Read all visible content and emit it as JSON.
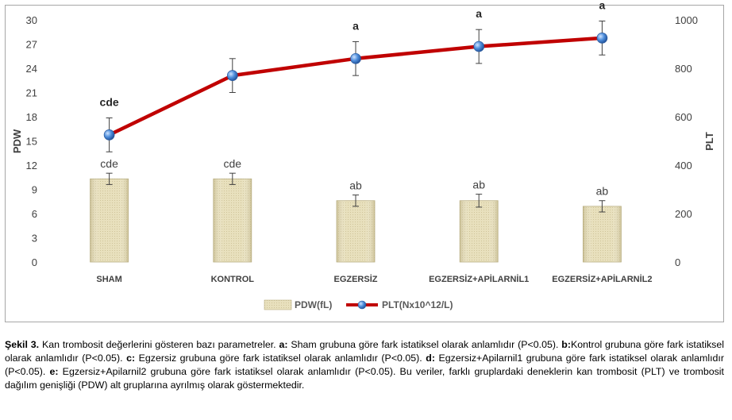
{
  "chart_data": {
    "type": "bar+line",
    "categories": [
      "SHAM",
      "KONTROL",
      "EGZERSİZ",
      "EGZERSİZ+APİLARNİL1",
      "EGZERSİZ+APİLARNİL2"
    ],
    "left_axis": {
      "label": "PDW",
      "min": 0,
      "max": 30,
      "ticks": [
        "0",
        "3",
        "6",
        "9",
        "12",
        "15",
        "18",
        "21",
        "24",
        "27",
        "30"
      ]
    },
    "right_axis": {
      "label": "PLT",
      "min": 0,
      "max": 1000,
      "ticks": [
        "0",
        "200",
        "400",
        "600",
        "800",
        "1000"
      ]
    },
    "series": [
      {
        "name": "PDW(fL)",
        "type": "bar",
        "axis": "left",
        "values": [
          10.3,
          10.3,
          7.6,
          7.6,
          6.9
        ],
        "errors": [
          0.7,
          0.7,
          0.7,
          0.8,
          0.7
        ],
        "labels": [
          "cde",
          "cde",
          "ab",
          "ab",
          "ab"
        ],
        "color": "#ddd4aa"
      },
      {
        "name": "PLT(Nx10^12/L)",
        "type": "line",
        "axis": "right",
        "values": [
          525,
          770,
          840,
          890,
          925
        ],
        "errors": [
          70,
          70,
          70,
          70,
          70
        ],
        "labels": [
          "cde",
          "",
          "a",
          "a",
          "a"
        ],
        "color": "#c00000",
        "marker_color": "#3a78c8"
      }
    ],
    "grid": false,
    "legend": "bottom"
  },
  "caption": {
    "line1_prefix": "Şekil 3.",
    "line1_text": " Kan trombosit değerlerini gösteren bazı parametreler. ",
    "line1_a": "a:",
    "line1_a_text": " Sham grubuna göre fark istatiksel olarak anlamlıdır (P<0.05).",
    "line2_b": "b:",
    "line2_b_text": "Kontrol grubuna göre fark istatiksel olarak anlamlıdır (P<0.05). ",
    "line2_c": "c:",
    "line2_c_text": " Egzersiz grubuna göre fark istatiksel olarak anlamlıdır (P<0.05).",
    "line3_d": "d:",
    "line3_d_text": " Egzersiz+Apilarnil1 grubuna göre fark istatiksel olarak anlamlıdır (P<0.05). ",
    "line3_e": "e:",
    "line3_e_text": " Egzersiz+Apilarnil2 grubuna göre fark istatiksel olarak anlamlıdır (P<0.05). Bu veriler, farklı gruplardaki deneklerin kan trombosit (PLT) ve trombosit dağılım genişliği (PDW) alt gruplarına ayrılmış olarak göstermektedir."
  }
}
